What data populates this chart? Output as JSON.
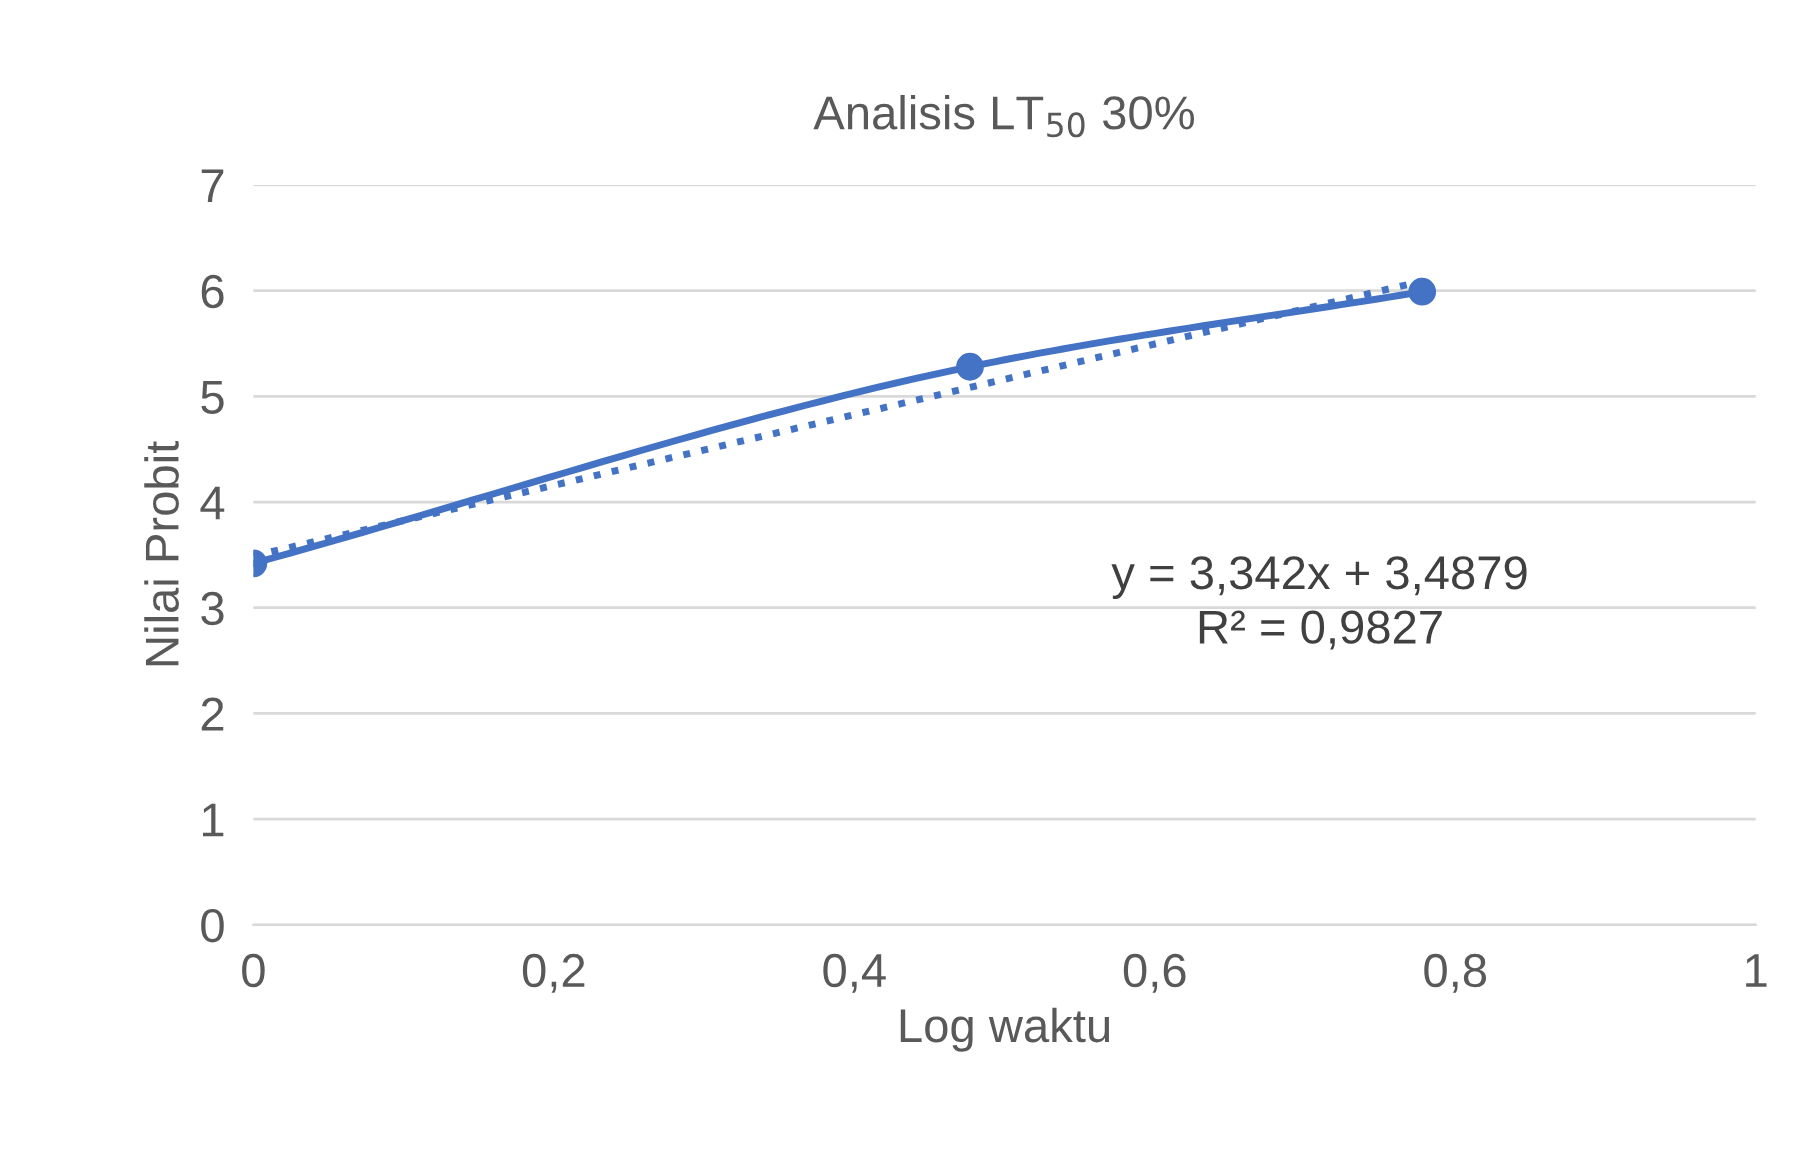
{
  "chart_data": {
    "type": "line",
    "title": "Analisis LT$_{50}$ 30%",
    "xlabel": "Log waktu",
    "ylabel": "Nilai Probit",
    "x": [
      0,
      0.477,
      0.778
    ],
    "series": [
      {
        "color": "#4472c4",
        "values": [
          3.42,
          5.28,
          5.99
        ],
        "marker": "circle",
        "line_style": "solid"
      },
      {
        "type": "line",
        "color": "#4472c4",
        "x": [
          0,
          0.778
        ],
        "values": [
          3.49,
          6.09
        ],
        "marker": "none",
        "line_style": "dotted"
      }
    ],
    "xlim": [
      0,
      1
    ],
    "ylim": [
      0,
      7
    ],
    "xticks": [
      0,
      {
        "value": 0.2,
        "label": "0,2"
      },
      {
        "value": 0.4,
        "label": "0,4"
      },
      {
        "value": 0.6,
        "label": "0,6"
      },
      {
        "value": 0.8,
        "label": "0,8"
      },
      1
    ],
    "yticks": [
      0,
      1,
      2,
      3,
      4,
      5,
      6,
      7
    ],
    "grid": "y",
    "annotations": [
      "y = 3,342x + 3,4879\nR² = 0,9827"
    ]
  }
}
